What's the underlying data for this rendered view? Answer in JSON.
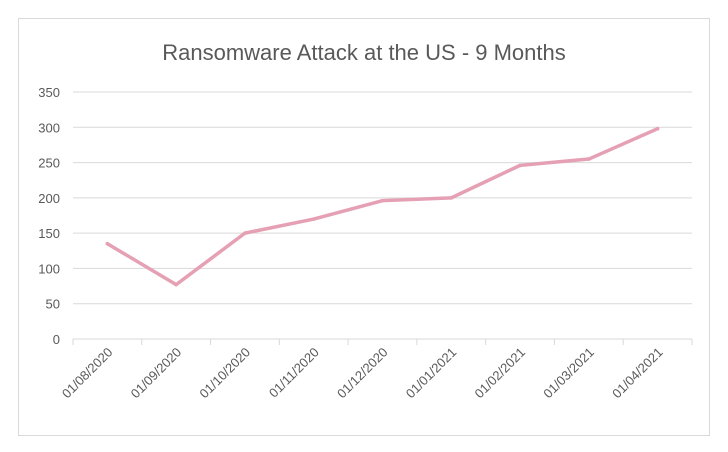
{
  "chart_data": {
    "type": "line",
    "title": "Ransomware Attack at the US - 9 Months",
    "xlabel": "",
    "ylabel": "",
    "categories": [
      "01/08/2020",
      "01/09/2020",
      "01/10/2020",
      "01/11/2020",
      "01/12/2020",
      "01/01/2021",
      "01/02/2021",
      "01/03/2021",
      "01/04/2021"
    ],
    "series": [
      {
        "values": [
          135,
          77,
          150,
          170,
          196,
          200,
          246,
          255,
          298
        ]
      }
    ],
    "ylim": [
      0,
      350
    ],
    "yticks": [
      0,
      50,
      100,
      150,
      200,
      250,
      300,
      350
    ],
    "grid": true,
    "legend": "none",
    "line_color": "#e5a0b3",
    "grid_color": "#d9d9d9",
    "text_color": "#595959"
  }
}
